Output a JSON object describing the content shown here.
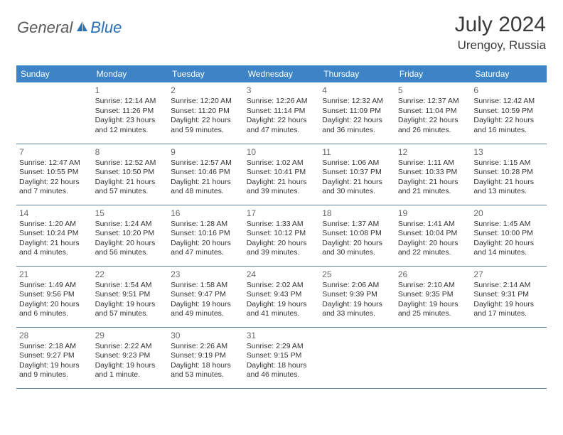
{
  "logo": {
    "general": "General",
    "blue": "Blue"
  },
  "title": "July 2024",
  "location": "Urengoy, Russia",
  "dayNames": [
    "Sunday",
    "Monday",
    "Tuesday",
    "Wednesday",
    "Thursday",
    "Friday",
    "Saturday"
  ],
  "colors": {
    "header_bg": "#3d84c6",
    "header_text": "#ffffff",
    "border": "#5b7fa0",
    "daynum": "#6a6a6a",
    "body_text": "#333333",
    "logo_gray": "#5a5a5a",
    "logo_blue": "#2b6fb5"
  },
  "weeks": [
    [
      null,
      {
        "n": "1",
        "sr": "Sunrise: 12:14 AM",
        "ss": "Sunset: 11:26 PM",
        "dl": "Daylight: 23 hours and 12 minutes."
      },
      {
        "n": "2",
        "sr": "Sunrise: 12:20 AM",
        "ss": "Sunset: 11:20 PM",
        "dl": "Daylight: 22 hours and 59 minutes."
      },
      {
        "n": "3",
        "sr": "Sunrise: 12:26 AM",
        "ss": "Sunset: 11:14 PM",
        "dl": "Daylight: 22 hours and 47 minutes."
      },
      {
        "n": "4",
        "sr": "Sunrise: 12:32 AM",
        "ss": "Sunset: 11:09 PM",
        "dl": "Daylight: 22 hours and 36 minutes."
      },
      {
        "n": "5",
        "sr": "Sunrise: 12:37 AM",
        "ss": "Sunset: 11:04 PM",
        "dl": "Daylight: 22 hours and 26 minutes."
      },
      {
        "n": "6",
        "sr": "Sunrise: 12:42 AM",
        "ss": "Sunset: 10:59 PM",
        "dl": "Daylight: 22 hours and 16 minutes."
      }
    ],
    [
      {
        "n": "7",
        "sr": "Sunrise: 12:47 AM",
        "ss": "Sunset: 10:55 PM",
        "dl": "Daylight: 22 hours and 7 minutes."
      },
      {
        "n": "8",
        "sr": "Sunrise: 12:52 AM",
        "ss": "Sunset: 10:50 PM",
        "dl": "Daylight: 21 hours and 57 minutes."
      },
      {
        "n": "9",
        "sr": "Sunrise: 12:57 AM",
        "ss": "Sunset: 10:46 PM",
        "dl": "Daylight: 21 hours and 48 minutes."
      },
      {
        "n": "10",
        "sr": "Sunrise: 1:02 AM",
        "ss": "Sunset: 10:41 PM",
        "dl": "Daylight: 21 hours and 39 minutes."
      },
      {
        "n": "11",
        "sr": "Sunrise: 1:06 AM",
        "ss": "Sunset: 10:37 PM",
        "dl": "Daylight: 21 hours and 30 minutes."
      },
      {
        "n": "12",
        "sr": "Sunrise: 1:11 AM",
        "ss": "Sunset: 10:33 PM",
        "dl": "Daylight: 21 hours and 21 minutes."
      },
      {
        "n": "13",
        "sr": "Sunrise: 1:15 AM",
        "ss": "Sunset: 10:28 PM",
        "dl": "Daylight: 21 hours and 13 minutes."
      }
    ],
    [
      {
        "n": "14",
        "sr": "Sunrise: 1:20 AM",
        "ss": "Sunset: 10:24 PM",
        "dl": "Daylight: 21 hours and 4 minutes."
      },
      {
        "n": "15",
        "sr": "Sunrise: 1:24 AM",
        "ss": "Sunset: 10:20 PM",
        "dl": "Daylight: 20 hours and 56 minutes."
      },
      {
        "n": "16",
        "sr": "Sunrise: 1:28 AM",
        "ss": "Sunset: 10:16 PM",
        "dl": "Daylight: 20 hours and 47 minutes."
      },
      {
        "n": "17",
        "sr": "Sunrise: 1:33 AM",
        "ss": "Sunset: 10:12 PM",
        "dl": "Daylight: 20 hours and 39 minutes."
      },
      {
        "n": "18",
        "sr": "Sunrise: 1:37 AM",
        "ss": "Sunset: 10:08 PM",
        "dl": "Daylight: 20 hours and 30 minutes."
      },
      {
        "n": "19",
        "sr": "Sunrise: 1:41 AM",
        "ss": "Sunset: 10:04 PM",
        "dl": "Daylight: 20 hours and 22 minutes."
      },
      {
        "n": "20",
        "sr": "Sunrise: 1:45 AM",
        "ss": "Sunset: 10:00 PM",
        "dl": "Daylight: 20 hours and 14 minutes."
      }
    ],
    [
      {
        "n": "21",
        "sr": "Sunrise: 1:49 AM",
        "ss": "Sunset: 9:56 PM",
        "dl": "Daylight: 20 hours and 6 minutes."
      },
      {
        "n": "22",
        "sr": "Sunrise: 1:54 AM",
        "ss": "Sunset: 9:51 PM",
        "dl": "Daylight: 19 hours and 57 minutes."
      },
      {
        "n": "23",
        "sr": "Sunrise: 1:58 AM",
        "ss": "Sunset: 9:47 PM",
        "dl": "Daylight: 19 hours and 49 minutes."
      },
      {
        "n": "24",
        "sr": "Sunrise: 2:02 AM",
        "ss": "Sunset: 9:43 PM",
        "dl": "Daylight: 19 hours and 41 minutes."
      },
      {
        "n": "25",
        "sr": "Sunrise: 2:06 AM",
        "ss": "Sunset: 9:39 PM",
        "dl": "Daylight: 19 hours and 33 minutes."
      },
      {
        "n": "26",
        "sr": "Sunrise: 2:10 AM",
        "ss": "Sunset: 9:35 PM",
        "dl": "Daylight: 19 hours and 25 minutes."
      },
      {
        "n": "27",
        "sr": "Sunrise: 2:14 AM",
        "ss": "Sunset: 9:31 PM",
        "dl": "Daylight: 19 hours and 17 minutes."
      }
    ],
    [
      {
        "n": "28",
        "sr": "Sunrise: 2:18 AM",
        "ss": "Sunset: 9:27 PM",
        "dl": "Daylight: 19 hours and 9 minutes."
      },
      {
        "n": "29",
        "sr": "Sunrise: 2:22 AM",
        "ss": "Sunset: 9:23 PM",
        "dl": "Daylight: 19 hours and 1 minute."
      },
      {
        "n": "30",
        "sr": "Sunrise: 2:26 AM",
        "ss": "Sunset: 9:19 PM",
        "dl": "Daylight: 18 hours and 53 minutes."
      },
      {
        "n": "31",
        "sr": "Sunrise: 2:29 AM",
        "ss": "Sunset: 9:15 PM",
        "dl": "Daylight: 18 hours and 46 minutes."
      },
      null,
      null,
      null
    ]
  ]
}
